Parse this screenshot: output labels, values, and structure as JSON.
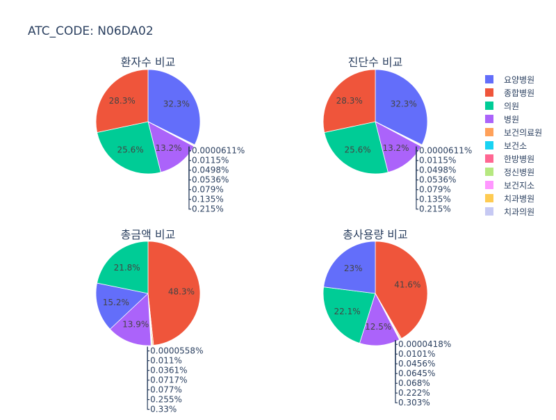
{
  "title": "ATC_CODE: N06DA02",
  "legend": {
    "position": "right",
    "items": [
      {
        "name": "요양병원",
        "color": "#636efa"
      },
      {
        "name": "종합병원",
        "color": "#EF553B"
      },
      {
        "name": "의원",
        "color": "#00cc96"
      },
      {
        "name": "병원",
        "color": "#ab63fa"
      },
      {
        "name": "보건의료원",
        "color": "#FFA15A"
      },
      {
        "name": "보건소",
        "color": "#19d3f3"
      },
      {
        "name": "한방병원",
        "color": "#FF6692"
      },
      {
        "name": "정신병원",
        "color": "#B6E880"
      },
      {
        "name": "보건지소",
        "color": "#FF97FF"
      },
      {
        "name": "치과병원",
        "color": "#FECB52"
      },
      {
        "name": "치과의원",
        "color": "#c6c9f3"
      }
    ]
  },
  "chart_data": [
    {
      "type": "pie",
      "title": "환자수 비교",
      "slices": [
        {
          "name": "요양병원",
          "value": 32.3,
          "label": "32.3%"
        },
        {
          "name": "보건의료원",
          "value": 0.215,
          "label": "0.215%"
        },
        {
          "name": "정신병원",
          "value": 0.135,
          "label": "0.135%"
        },
        {
          "name": "한방병원",
          "value": 0.079,
          "label": "0.079%"
        },
        {
          "name": "보건소",
          "value": 0.0536,
          "label": "0.0536%"
        },
        {
          "name": "보건지소",
          "value": 0.0498,
          "label": "0.0498%"
        },
        {
          "name": "치과병원",
          "value": 0.0115,
          "label": "0.0115%"
        },
        {
          "name": "치과의원",
          "value": 6.11e-05,
          "label": "0.0000611%"
        },
        {
          "name": "병원",
          "value": 13.2,
          "label": "13.2%"
        },
        {
          "name": "의원",
          "value": 25.6,
          "label": "25.6%"
        },
        {
          "name": "종합병원",
          "value": 28.3,
          "label": "28.3%"
        }
      ]
    },
    {
      "type": "pie",
      "title": "진단수 비교",
      "slices": [
        {
          "name": "요양병원",
          "value": 32.3,
          "label": "32.3%"
        },
        {
          "name": "보건의료원",
          "value": 0.215,
          "label": "0.215%"
        },
        {
          "name": "정신병원",
          "value": 0.135,
          "label": "0.135%"
        },
        {
          "name": "한방병원",
          "value": 0.079,
          "label": "0.079%"
        },
        {
          "name": "보건소",
          "value": 0.0536,
          "label": "0.0536%"
        },
        {
          "name": "보건지소",
          "value": 0.0498,
          "label": "0.0498%"
        },
        {
          "name": "치과병원",
          "value": 0.0115,
          "label": "0.0115%"
        },
        {
          "name": "치과의원",
          "value": 6.11e-05,
          "label": "0.0000611%"
        },
        {
          "name": "병원",
          "value": 13.2,
          "label": "13.2%"
        },
        {
          "name": "의원",
          "value": 25.6,
          "label": "25.6%"
        },
        {
          "name": "종합병원",
          "value": 28.3,
          "label": "28.3%"
        }
      ]
    },
    {
      "type": "pie",
      "title": "총금액 비교",
      "slices": [
        {
          "name": "종합병원",
          "value": 48.3,
          "label": "48.3%"
        },
        {
          "name": "보건의료원",
          "value": 0.33,
          "label": "0.33%"
        },
        {
          "name": "정신병원",
          "value": 0.255,
          "label": "0.255%"
        },
        {
          "name": "한방병원",
          "value": 0.077,
          "label": "0.077%"
        },
        {
          "name": "보건소",
          "value": 0.0717,
          "label": "0.0717%"
        },
        {
          "name": "보건지소",
          "value": 0.0361,
          "label": "0.0361%"
        },
        {
          "name": "치과병원",
          "value": 0.011,
          "label": "0.011%"
        },
        {
          "name": "치과의원",
          "value": 5.58e-05,
          "label": "0.0000558%"
        },
        {
          "name": "병원",
          "value": 13.9,
          "label": "13.9%"
        },
        {
          "name": "요양병원",
          "value": 15.2,
          "label": "15.2%"
        },
        {
          "name": "의원",
          "value": 21.8,
          "label": "21.8%"
        }
      ]
    },
    {
      "type": "pie",
      "title": "총사용량 비교",
      "slices": [
        {
          "name": "종합병원",
          "value": 41.6,
          "label": "41.6%"
        },
        {
          "name": "보건의료원",
          "value": 0.303,
          "label": "0.303%"
        },
        {
          "name": "정신병원",
          "value": 0.222,
          "label": "0.222%"
        },
        {
          "name": "한방병원",
          "value": 0.068,
          "label": "0.068%"
        },
        {
          "name": "보건소",
          "value": 0.0645,
          "label": "0.0645%"
        },
        {
          "name": "보건지소",
          "value": 0.0456,
          "label": "0.0456%"
        },
        {
          "name": "치과병원",
          "value": 0.0101,
          "label": "0.0101%"
        },
        {
          "name": "치과의원",
          "value": 4.18e-05,
          "label": "0.0000418%"
        },
        {
          "name": "병원",
          "value": 12.5,
          "label": "12.5%"
        },
        {
          "name": "의원",
          "value": 22.1,
          "label": "22.1%"
        },
        {
          "name": "요양병원",
          "value": 23,
          "label": "23%"
        }
      ]
    }
  ]
}
